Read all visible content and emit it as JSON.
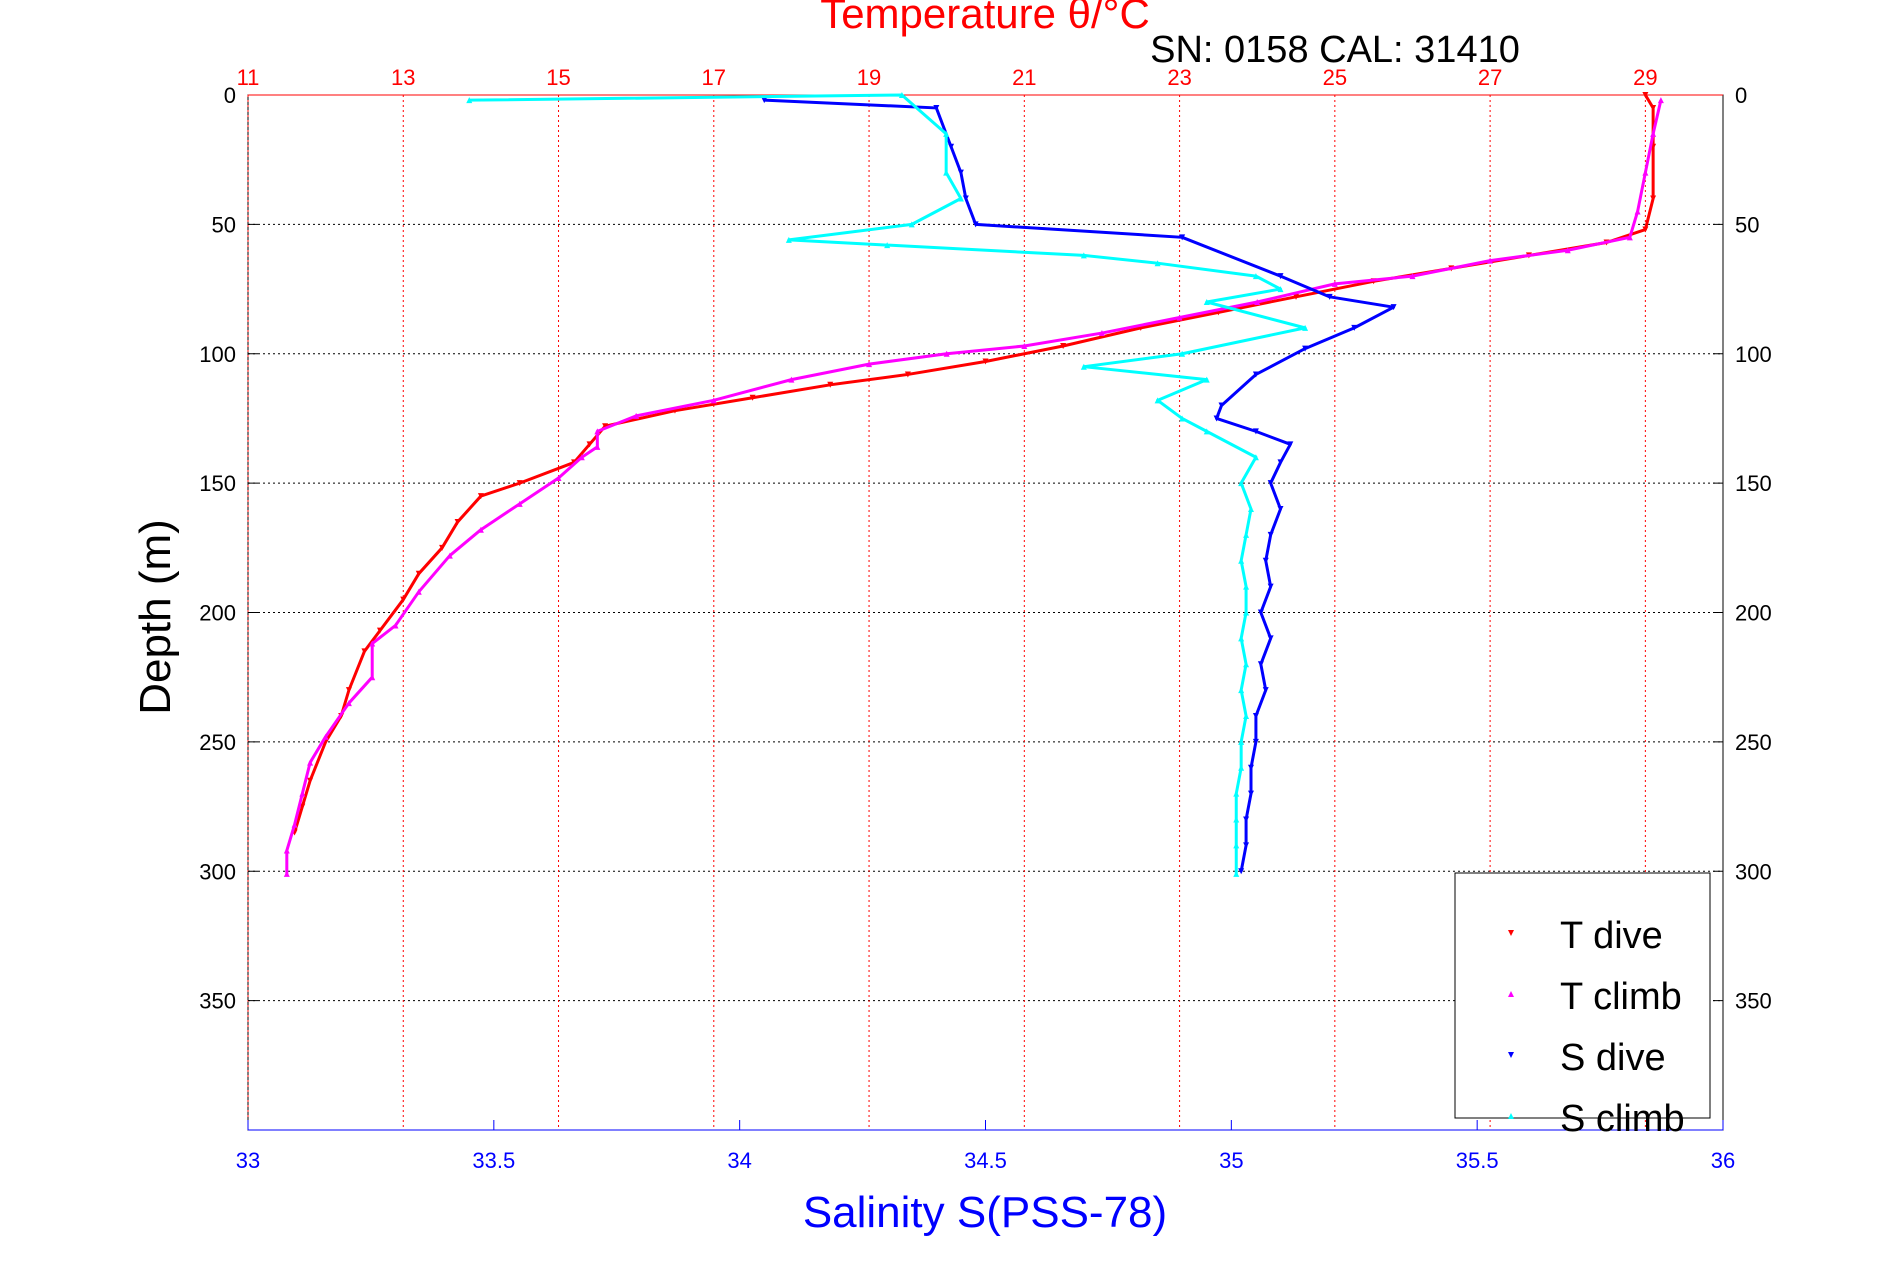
{
  "chart_data": {
    "type": "scatter",
    "title": "Temperature θ/°C",
    "subtitle": "SN: 0158  CAL: 31410",
    "ylabel": "Depth (m)",
    "xlabel_bottom": "Salinity S(PSS-78)",
    "ylim": [
      0,
      400
    ],
    "y_inverted": true,
    "y_ticks": [
      "0",
      "50",
      "100",
      "150",
      "200",
      "250",
      "300",
      "350"
    ],
    "y_tick_values": [
      0,
      50,
      100,
      150,
      200,
      250,
      300,
      350
    ],
    "temperature_axis": {
      "xlim": [
        11,
        30
      ],
      "ticks": [
        "11",
        "13",
        "15",
        "17",
        "19",
        "21",
        "23",
        "25",
        "27",
        "29"
      ],
      "tick_values": [
        11,
        13,
        15,
        17,
        19,
        21,
        23,
        25,
        27,
        29
      ],
      "color": "#ff0000"
    },
    "salinity_axis": {
      "xlim": [
        33,
        36
      ],
      "ticks": [
        "33",
        "33.5",
        "34",
        "34.5",
        "35",
        "35.5",
        "36"
      ],
      "tick_values": [
        33,
        33.5,
        34,
        34.5,
        35,
        35.5,
        36
      ],
      "color": "#0000ff"
    },
    "grid": true,
    "legend_position": "bottom-right",
    "series": [
      {
        "name": "T dive",
        "axis": "temperature",
        "color": "#ff0000",
        "marker": "triangle-down",
        "points": [
          [
            29,
            0
          ],
          [
            29.1,
            5
          ],
          [
            29.1,
            20
          ],
          [
            29.1,
            40
          ],
          [
            29.0,
            52
          ],
          [
            28.5,
            57
          ],
          [
            27.5,
            62
          ],
          [
            26.5,
            67
          ],
          [
            25.5,
            72
          ],
          [
            24.5,
            78
          ],
          [
            23.5,
            84
          ],
          [
            22.5,
            90
          ],
          [
            21.5,
            97
          ],
          [
            20.5,
            103
          ],
          [
            19.5,
            108
          ],
          [
            18.5,
            112
          ],
          [
            17.5,
            117
          ],
          [
            16.5,
            122
          ],
          [
            15.6,
            128
          ],
          [
            15.4,
            135
          ],
          [
            15.2,
            142
          ],
          [
            14.5,
            150
          ],
          [
            14.0,
            155
          ],
          [
            13.7,
            165
          ],
          [
            13.5,
            175
          ],
          [
            13.2,
            185
          ],
          [
            13.0,
            195
          ],
          [
            12.7,
            207
          ],
          [
            12.5,
            215
          ],
          [
            12.3,
            230
          ],
          [
            12.2,
            240
          ],
          [
            12.0,
            250
          ],
          [
            11.8,
            265
          ],
          [
            11.7,
            275
          ],
          [
            11.6,
            285
          ]
        ]
      },
      {
        "name": "T climb",
        "axis": "temperature",
        "color": "#ff00ff",
        "marker": "triangle-up",
        "points": [
          [
            29.2,
            2
          ],
          [
            29.1,
            15
          ],
          [
            29.0,
            30
          ],
          [
            28.9,
            45
          ],
          [
            28.8,
            55
          ],
          [
            28.0,
            60
          ],
          [
            27.0,
            64
          ],
          [
            26.0,
            70
          ],
          [
            25.0,
            73
          ],
          [
            24.0,
            80
          ],
          [
            23.0,
            86
          ],
          [
            22.0,
            92
          ],
          [
            21.0,
            97
          ],
          [
            20.0,
            100
          ],
          [
            19.0,
            104
          ],
          [
            18.0,
            110
          ],
          [
            17.0,
            118
          ],
          [
            16.0,
            124
          ],
          [
            15.5,
            130
          ],
          [
            15.5,
            136
          ],
          [
            15.3,
            140
          ],
          [
            15.0,
            148
          ],
          [
            14.5,
            158
          ],
          [
            14.0,
            168
          ],
          [
            13.6,
            178
          ],
          [
            13.2,
            192
          ],
          [
            12.9,
            205
          ],
          [
            12.6,
            212
          ],
          [
            12.6,
            225
          ],
          [
            12.3,
            235
          ],
          [
            12.0,
            248
          ],
          [
            11.8,
            258
          ],
          [
            11.7,
            270
          ],
          [
            11.6,
            282
          ],
          [
            11.5,
            292
          ],
          [
            11.5,
            301
          ]
        ]
      },
      {
        "name": "S dive",
        "axis": "salinity",
        "color": "#0000ff",
        "marker": "triangle-down",
        "points": [
          [
            34.05,
            2
          ],
          [
            34.4,
            5
          ],
          [
            34.43,
            20
          ],
          [
            34.45,
            30
          ],
          [
            34.46,
            40
          ],
          [
            34.48,
            50
          ],
          [
            34.9,
            55
          ],
          [
            35.1,
            70
          ],
          [
            35.2,
            78
          ],
          [
            35.33,
            82
          ],
          [
            35.25,
            90
          ],
          [
            35.15,
            98
          ],
          [
            35.05,
            108
          ],
          [
            34.98,
            120
          ],
          [
            34.97,
            125
          ],
          [
            35.05,
            130
          ],
          [
            35.12,
            135
          ],
          [
            35.1,
            142
          ],
          [
            35.08,
            150
          ],
          [
            35.1,
            160
          ],
          [
            35.08,
            170
          ],
          [
            35.07,
            180
          ],
          [
            35.08,
            190
          ],
          [
            35.06,
            200
          ],
          [
            35.08,
            210
          ],
          [
            35.06,
            220
          ],
          [
            35.07,
            230
          ],
          [
            35.05,
            240
          ],
          [
            35.05,
            250
          ],
          [
            35.04,
            260
          ],
          [
            35.04,
            270
          ],
          [
            35.03,
            280
          ],
          [
            35.03,
            290
          ],
          [
            35.02,
            300
          ]
        ]
      },
      {
        "name": "S climb",
        "axis": "salinity",
        "color": "#00ffff",
        "marker": "triangle-up",
        "points": [
          [
            33.45,
            2
          ],
          [
            34.33,
            0
          ],
          [
            34.42,
            15
          ],
          [
            34.42,
            30
          ],
          [
            34.45,
            40
          ],
          [
            34.35,
            50
          ],
          [
            34.1,
            56
          ],
          [
            34.3,
            58
          ],
          [
            34.7,
            62
          ],
          [
            34.85,
            65
          ],
          [
            35.05,
            70
          ],
          [
            35.1,
            75
          ],
          [
            34.95,
            80
          ],
          [
            35.15,
            90
          ],
          [
            34.9,
            100
          ],
          [
            34.7,
            105
          ],
          [
            34.95,
            110
          ],
          [
            34.85,
            118
          ],
          [
            34.9,
            125
          ],
          [
            34.95,
            130
          ],
          [
            35.05,
            140
          ],
          [
            35.02,
            150
          ],
          [
            35.04,
            160
          ],
          [
            35.03,
            170
          ],
          [
            35.02,
            180
          ],
          [
            35.03,
            190
          ],
          [
            35.03,
            200
          ],
          [
            35.02,
            210
          ],
          [
            35.03,
            220
          ],
          [
            35.02,
            230
          ],
          [
            35.03,
            240
          ],
          [
            35.02,
            250
          ],
          [
            35.02,
            260
          ],
          [
            35.01,
            270
          ],
          [
            35.01,
            280
          ],
          [
            35.01,
            290
          ],
          [
            35.01,
            301
          ]
        ]
      }
    ]
  }
}
